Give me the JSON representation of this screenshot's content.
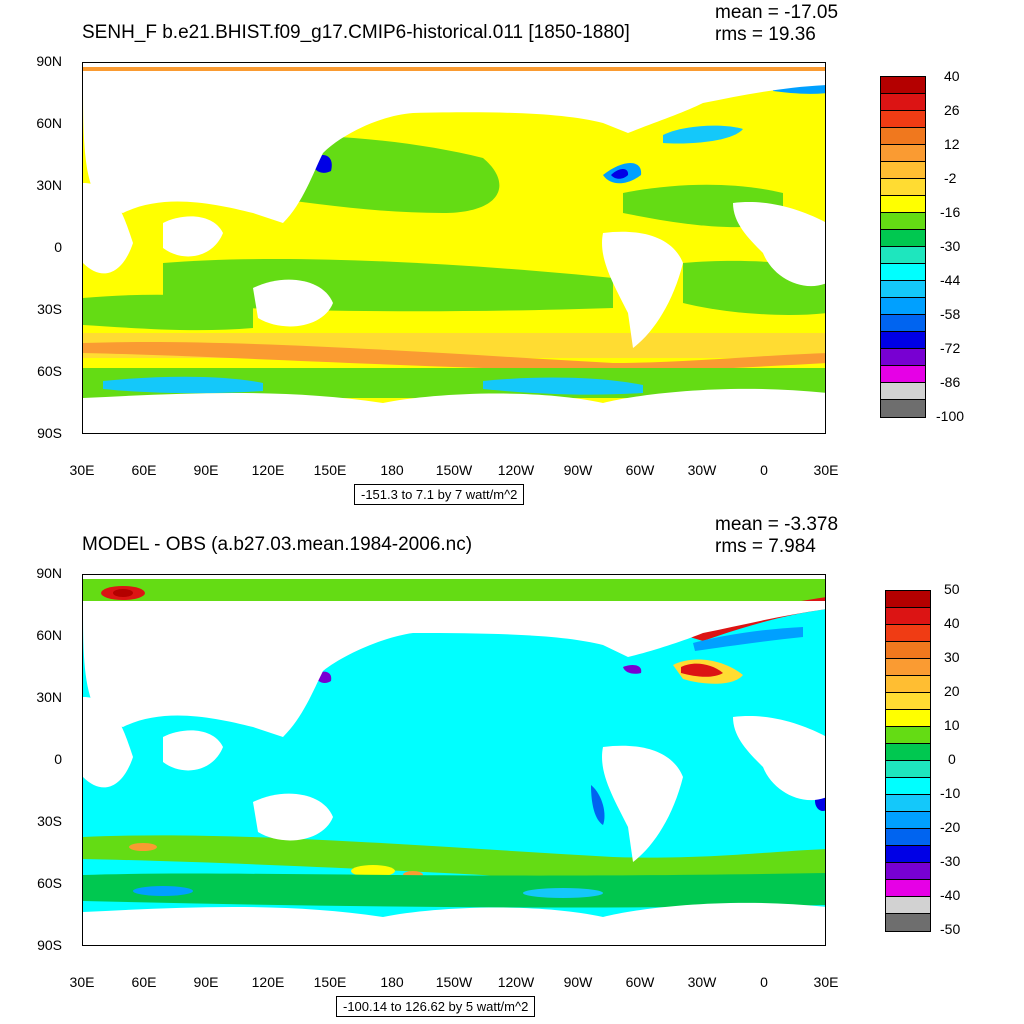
{
  "chart_data": [
    {
      "type": "heatmap",
      "title": "SENH_F b.e21.BHIST.f09_g17.CMIP6-historical.011 [1850-1880]",
      "mean_label": "mean = -17.05",
      "rms_label": "rms = 19.36",
      "range_label": "-151.3 to 7.1 by 7 watt/m^2",
      "y_ticks": [
        "90N",
        "60N",
        "30N",
        "0",
        "30S",
        "60S",
        "90S"
      ],
      "x_ticks": [
        "30E",
        "60E",
        "90E",
        "120E",
        "150E",
        "180",
        "150W",
        "120W",
        "90W",
        "60W",
        "30W",
        "0",
        "30E"
      ],
      "colorbar_labels": [
        "40",
        "26",
        "12",
        "-2",
        "-16",
        "-30",
        "-44",
        "-58",
        "-72",
        "-86",
        "-100"
      ],
      "colorbar_colors": [
        "#b40000",
        "#dc1414",
        "#f03c14",
        "#f0781e",
        "#fa9b32",
        "#ffbe32",
        "#ffdc32",
        "#ffff00",
        "#64dc14",
        "#00c850",
        "#1ee6be",
        "#00ffff",
        "#14c8fa",
        "#00a0ff",
        "#0064f0",
        "#0000e6",
        "#7800d2",
        "#e600e6",
        "#d2d2d2",
        "#6e6e6e"
      ]
    },
    {
      "type": "heatmap",
      "title": "MODEL - OBS (a.b27.03.mean.1984-2006.nc)",
      "mean_label": "mean = -3.378",
      "rms_label": "rms = 7.984",
      "range_label": "-100.14 to 126.62 by 5 watt/m^2",
      "y_ticks": [
        "90N",
        "60N",
        "30N",
        "0",
        "30S",
        "60S",
        "90S"
      ],
      "x_ticks": [
        "30E",
        "60E",
        "90E",
        "120E",
        "150E",
        "180",
        "150W",
        "120W",
        "90W",
        "60W",
        "30W",
        "0",
        "30E"
      ],
      "colorbar_labels": [
        "50",
        "40",
        "30",
        "20",
        "10",
        "0",
        "-10",
        "-20",
        "-30",
        "-40",
        "-50"
      ],
      "colorbar_colors": [
        "#b40000",
        "#dc1414",
        "#f03c14",
        "#f0781e",
        "#fa9b32",
        "#ffbe32",
        "#ffdc32",
        "#ffff00",
        "#64dc14",
        "#00c850",
        "#1ee6be",
        "#00ffff",
        "#14c8fa",
        "#00a0ff",
        "#0064f0",
        "#0000e6",
        "#7800d2",
        "#e600e6",
        "#d2d2d2",
        "#6e6e6e"
      ]
    }
  ]
}
